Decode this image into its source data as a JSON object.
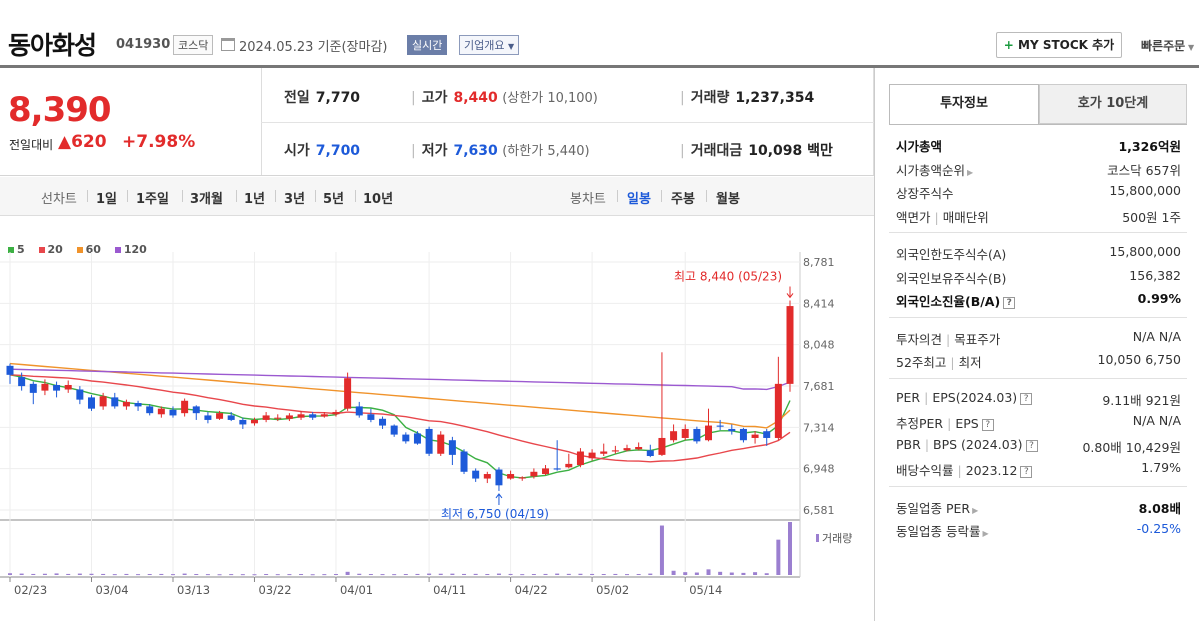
{
  "header": {
    "stock_name": "동아화성",
    "stock_code": "041930",
    "market_badge": "코스닥",
    "date_text": "2024.05.23  기준(장마감)",
    "realtime_badge": "실시간",
    "company_badge": "기업개요",
    "mystock_label": "MY STOCK 추가",
    "quick_order_label": "빠른주문"
  },
  "quote": {
    "price": "8,390",
    "change_label": "전일대비",
    "change_amount": "▲620",
    "change_pct": "+7.98%",
    "prev_close_label": "전일",
    "prev_close": "7,770",
    "high_label": "고가",
    "high": "8,440",
    "upper_limit_label": "(상한가 10,100)",
    "volume_label": "거래량",
    "volume": "1,237,354",
    "open_label": "시가",
    "open": "7,700",
    "low_label": "저가",
    "low": "7,630",
    "lower_limit_label": "(하한가 5,440)",
    "amount_label": "거래대금",
    "amount": "10,098 백만"
  },
  "period_bar": {
    "line_label": "선차트",
    "periods": [
      "1일",
      "1주일",
      "3개월",
      "1년",
      "3년",
      "5년",
      "10년"
    ],
    "candle_label": "봉차트",
    "candles": [
      "일봉",
      "주봉",
      "월봉"
    ],
    "active_candle": "일봉"
  },
  "legend": [
    {
      "name": "5",
      "color": "#3cb043"
    },
    {
      "name": "20",
      "color": "#e8474c"
    },
    {
      "name": "60",
      "color": "#f0932b"
    },
    {
      "name": "120",
      "color": "#9b59d0"
    }
  ],
  "chart_data": {
    "type": "candlestick",
    "y_ticks": [
      "8,781",
      "8,414",
      "8,048",
      "7,681",
      "7,314",
      "6,948",
      "6,581"
    ],
    "ylim": [
      6581,
      8781
    ],
    "x_ticks": [
      "02/23",
      "03/04",
      "03/13",
      "03/22",
      "04/01",
      "04/11",
      "04/22",
      "05/02",
      "05/14"
    ],
    "annotations": {
      "high": "최고 8,440 (05/23)",
      "low": "최저 6,750 (04/19)"
    },
    "volume_label": "거래량",
    "candles": [
      [
        7860,
        7780,
        7880,
        7700
      ],
      [
        7760,
        7680,
        7800,
        7640
      ],
      [
        7700,
        7620,
        7720,
        7520
      ],
      [
        7640,
        7700,
        7740,
        7600
      ],
      [
        7690,
        7640,
        7720,
        7580
      ],
      [
        7650,
        7690,
        7730,
        7620
      ],
      [
        7650,
        7560,
        7680,
        7520
      ],
      [
        7580,
        7480,
        7600,
        7460
      ],
      [
        7500,
        7590,
        7620,
        7470
      ],
      [
        7580,
        7500,
        7620,
        7480
      ],
      [
        7500,
        7540,
        7560,
        7470
      ],
      [
        7530,
        7500,
        7550,
        7460
      ],
      [
        7500,
        7440,
        7520,
        7420
      ],
      [
        7430,
        7480,
        7500,
        7400
      ],
      [
        7470,
        7420,
        7500,
        7400
      ],
      [
        7440,
        7550,
        7570,
        7410
      ],
      [
        7500,
        7440,
        7510,
        7380
      ],
      [
        7420,
        7380,
        7450,
        7350
      ],
      [
        7390,
        7440,
        7460,
        7380
      ],
      [
        7420,
        7380,
        7450,
        7370
      ],
      [
        7380,
        7340,
        7400,
        7300
      ],
      [
        7350,
        7380,
        7400,
        7330
      ],
      [
        7380,
        7420,
        7450,
        7360
      ],
      [
        7400,
        7400,
        7430,
        7370
      ],
      [
        7390,
        7420,
        7440,
        7370
      ],
      [
        7400,
        7430,
        7460,
        7380
      ],
      [
        7430,
        7400,
        7450,
        7380
      ],
      [
        7410,
        7430,
        7450,
        7400
      ],
      [
        7430,
        7450,
        7470,
        7410
      ],
      [
        7480,
        7750,
        7800,
        7460
      ],
      [
        7500,
        7420,
        7540,
        7400
      ],
      [
        7430,
        7380,
        7480,
        7360
      ],
      [
        7390,
        7330,
        7410,
        7300
      ],
      [
        7330,
        7250,
        7340,
        7230
      ],
      [
        7250,
        7190,
        7270,
        7170
      ],
      [
        7260,
        7170,
        7280,
        7160
      ],
      [
        7300,
        7080,
        7320,
        7060
      ],
      [
        7080,
        7250,
        7280,
        7060
      ],
      [
        7200,
        7070,
        7230,
        6980
      ],
      [
        7100,
        6920,
        7120,
        6900
      ],
      [
        6930,
        6860,
        6950,
        6830
      ],
      [
        6860,
        6900,
        6920,
        6820
      ],
      [
        6940,
        6800,
        6960,
        6750
      ],
      [
        6860,
        6900,
        6930,
        6850
      ],
      [
        6860,
        6870,
        6880,
        6840
      ],
      [
        6880,
        6920,
        6950,
        6860
      ],
      [
        6900,
        6950,
        6980,
        6890
      ],
      [
        6950,
        6940,
        7200,
        6930
      ],
      [
        6960,
        6990,
        7080,
        6950
      ],
      [
        6980,
        7100,
        7130,
        6960
      ],
      [
        7040,
        7090,
        7120,
        7020
      ],
      [
        7080,
        7100,
        7170,
        7060
      ],
      [
        7100,
        7110,
        7150,
        7080
      ],
      [
        7110,
        7130,
        7160,
        7100
      ],
      [
        7120,
        7140,
        7180,
        7110
      ],
      [
        7110,
        7060,
        7160,
        7050
      ],
      [
        7070,
        7220,
        7980,
        7060
      ],
      [
        7200,
        7280,
        7340,
        7180
      ],
      [
        7220,
        7300,
        7340,
        7200
      ],
      [
        7300,
        7190,
        7320,
        7170
      ],
      [
        7200,
        7330,
        7480,
        7190
      ],
      [
        7330,
        7320,
        7380,
        7290
      ],
      [
        7300,
        7280,
        7340,
        7250
      ],
      [
        7300,
        7200,
        7310,
        7180
      ],
      [
        7220,
        7250,
        7280,
        7170
      ],
      [
        7280,
        7220,
        7300,
        7150
      ],
      [
        7220,
        7700,
        7940,
        7200
      ],
      [
        7700,
        8390,
        8440,
        7630
      ]
    ],
    "volume": [
      50,
      40,
      30,
      35,
      45,
      30,
      40,
      35,
      30,
      25,
      30,
      25,
      28,
      30,
      25,
      40,
      28,
      25,
      22,
      26,
      24,
      22,
      28,
      24,
      26,
      28,
      22,
      25,
      28,
      90,
      35,
      28,
      26,
      25,
      28,
      30,
      40,
      36,
      38,
      30,
      32,
      28,
      40,
      30,
      25,
      28,
      30,
      40,
      32,
      35,
      30,
      28,
      30,
      26,
      28,
      40,
      1400,
      120,
      80,
      70,
      160,
      90,
      70,
      60,
      80,
      50,
      1000,
      1500
    ]
  },
  "info": {
    "tab_active": "투자정보",
    "tab_inactive": "호가 10단계",
    "market_cap_label": "시가총액",
    "market_cap": "1,326억원",
    "rank_label": "시가총액순위",
    "rank": "코스닥 657위",
    "shares_label": "상장주식수",
    "shares": "15,800,000",
    "par_label": "액면가",
    "unit_label": "매매단위",
    "par_unit": "500원  1주",
    "foreign_limit_label": "외국인한도주식수(A)",
    "foreign_limit": "15,800,000",
    "foreign_hold_label": "외국인보유주식수(B)",
    "foreign_hold": "156,382",
    "foreign_ratio_label": "외국인소진율(B/A)",
    "foreign_ratio": "0.99%",
    "opinion_label": "투자의견",
    "target_label": "목표주가",
    "opinion_target": "N/A  N/A",
    "w52_high_label": "52주최고",
    "w52_low_label": "최저",
    "w52": "10,050  6,750",
    "per_label": "PER",
    "eps_label": "EPS(2024.03)",
    "per_eps": "9.11배  921원",
    "est_per_label": "추정PER",
    "est_eps_label": "EPS",
    "est_per_eps": "N/A  N/A",
    "pbr_label": "PBR",
    "bps_label": "BPS (2024.03)",
    "pbr_bps": "0.80배  10,429원",
    "div_label": "배당수익률",
    "div_year": "2023.12",
    "div": "1.79%",
    "sector_per_label": "동일업종 PER",
    "sector_per": "8.08배",
    "sector_chg_label": "동일업종 등락률",
    "sector_chg": "-0.25%"
  }
}
